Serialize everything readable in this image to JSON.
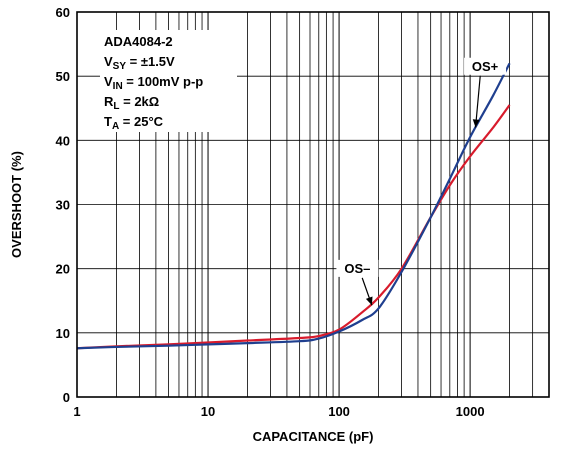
{
  "chart_data": {
    "type": "line",
    "xscale": "log",
    "xlabel": "CAPACITANCE (pF)",
    "ylabel": "OVERSHOOT (%)",
    "xlim": [
      1,
      4000
    ],
    "ylim": [
      0,
      60
    ],
    "x_ticks": [
      1,
      10,
      100,
      1000
    ],
    "x_tick_labels": [
      "1",
      "10",
      "100",
      "1000"
    ],
    "y_ticks": [
      0,
      10,
      20,
      30,
      40,
      50,
      60
    ],
    "y_tick_labels": [
      "0",
      "10",
      "20",
      "30",
      "40",
      "50",
      "60"
    ],
    "grid": true,
    "conditions": [
      {
        "main": "ADA4084-2",
        "sub": "",
        "tail": ""
      },
      {
        "main": "V",
        "sub": "SY",
        "tail": " = ±1.5V"
      },
      {
        "main": "V",
        "sub": "IN",
        "tail": " = 100mV p-p"
      },
      {
        "main": "R",
        "sub": "L",
        "tail": " = 2kΩ"
      },
      {
        "main": "T",
        "sub": "A",
        "tail": " = 25°C"
      }
    ],
    "series": [
      {
        "name": "OS+",
        "color": "#1f3f8f",
        "x": [
          1,
          2,
          5,
          10,
          20,
          50,
          70,
          100,
          150,
          200,
          300,
          500,
          700,
          1000,
          1500,
          2000
        ],
        "y": [
          7.6,
          7.8,
          8.0,
          8.2,
          8.4,
          8.7,
          9.1,
          10.2,
          12.0,
          13.8,
          19.5,
          28.0,
          34.0,
          40.5,
          47.0,
          52.0
        ]
      },
      {
        "name": "OS–",
        "color": "#d81b2c",
        "x": [
          1,
          2,
          5,
          10,
          20,
          50,
          70,
          100,
          150,
          200,
          300,
          500,
          700,
          1000,
          1500,
          2000
        ],
        "y": [
          7.6,
          7.9,
          8.2,
          8.5,
          8.8,
          9.2,
          9.5,
          10.5,
          13.2,
          15.5,
          20.0,
          28.0,
          33.0,
          37.5,
          42.0,
          45.5
        ]
      }
    ],
    "annotations": [
      {
        "text": "OS+",
        "series": "OS+",
        "x": 1300,
        "y": 51.0,
        "arrow_to_x": 1100,
        "arrow_to_y": 42.0
      },
      {
        "text": "OS–",
        "series": "OS–",
        "x": 138,
        "y": 19.5,
        "arrow_to_x": 178,
        "arrow_to_y": 14.3
      }
    ]
  }
}
